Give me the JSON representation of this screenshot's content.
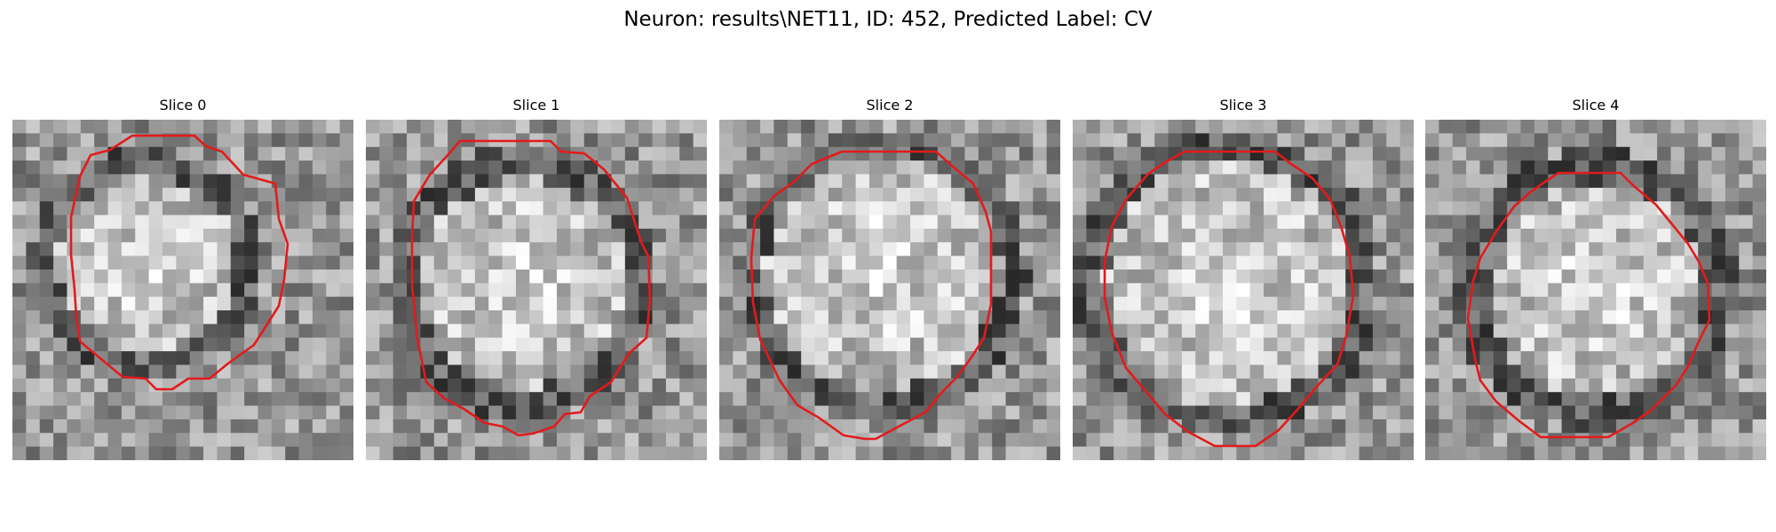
{
  "figure": {
    "title": "Neuron: results\\NET11, ID: 452, Predicted Label: CV",
    "contour_color": "#e31a1c",
    "colormap": "grayscale"
  },
  "panels": [
    {
      "title": "Slice 0",
      "contour_icon": "red-outline-contour"
    },
    {
      "title": "Slice 1",
      "contour_icon": "red-outline-contour"
    },
    {
      "title": "Slice 2",
      "contour_icon": "red-outline-contour"
    },
    {
      "title": "Slice 3",
      "contour_icon": "red-outline-contour"
    },
    {
      "title": "Slice 4",
      "contour_icon": "red-outline-contour"
    }
  ]
}
